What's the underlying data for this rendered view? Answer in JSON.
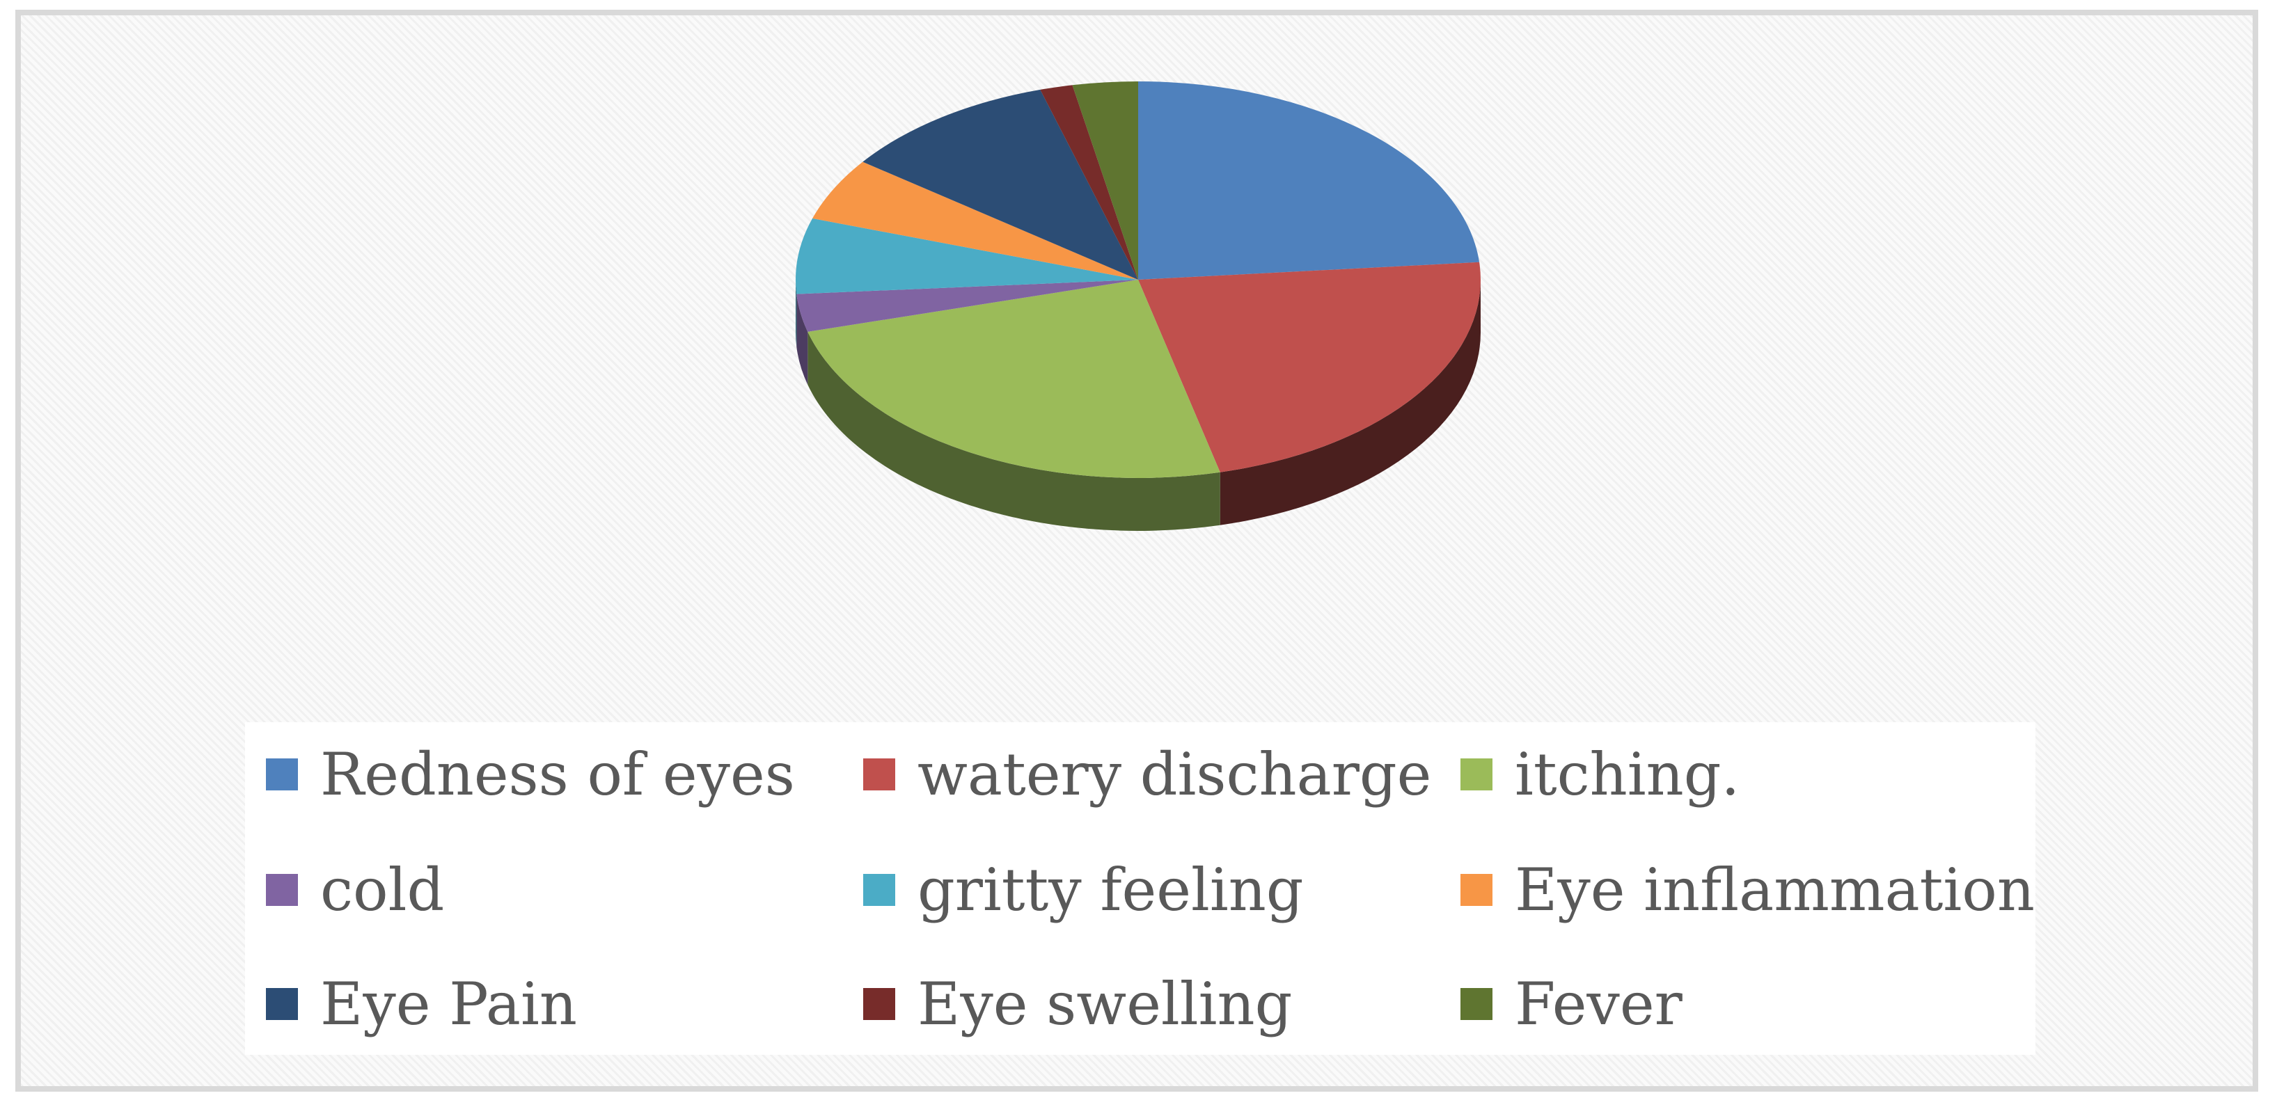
{
  "chart_data": {
    "type": "pie",
    "style": "3d",
    "title": "",
    "legend_position": "bottom",
    "categories": [
      "Redness of eyes",
      "watery discharge",
      "itching.",
      "cold",
      "gritty feeling",
      "Eye inflammation",
      "Eye Pain",
      "Eye swelling",
      "Fever"
    ],
    "values": [
      23,
      22,
      24,
      3,
      6,
      5,
      10,
      1.5,
      3
    ],
    "colors": [
      "#4F81BD",
      "#C0504D",
      "#9BBB59",
      "#8064A2",
      "#4BACC6",
      "#F79646",
      "#2C4D75",
      "#772C2A",
      "#5F7530"
    ],
    "side_colors": [
      "#2F4D71",
      "#4A1F1E",
      "#4F6231",
      "#4C3C61",
      "#2D6776",
      "#94592A",
      "#1B2F47",
      "#471A19",
      "#39461C"
    ]
  }
}
